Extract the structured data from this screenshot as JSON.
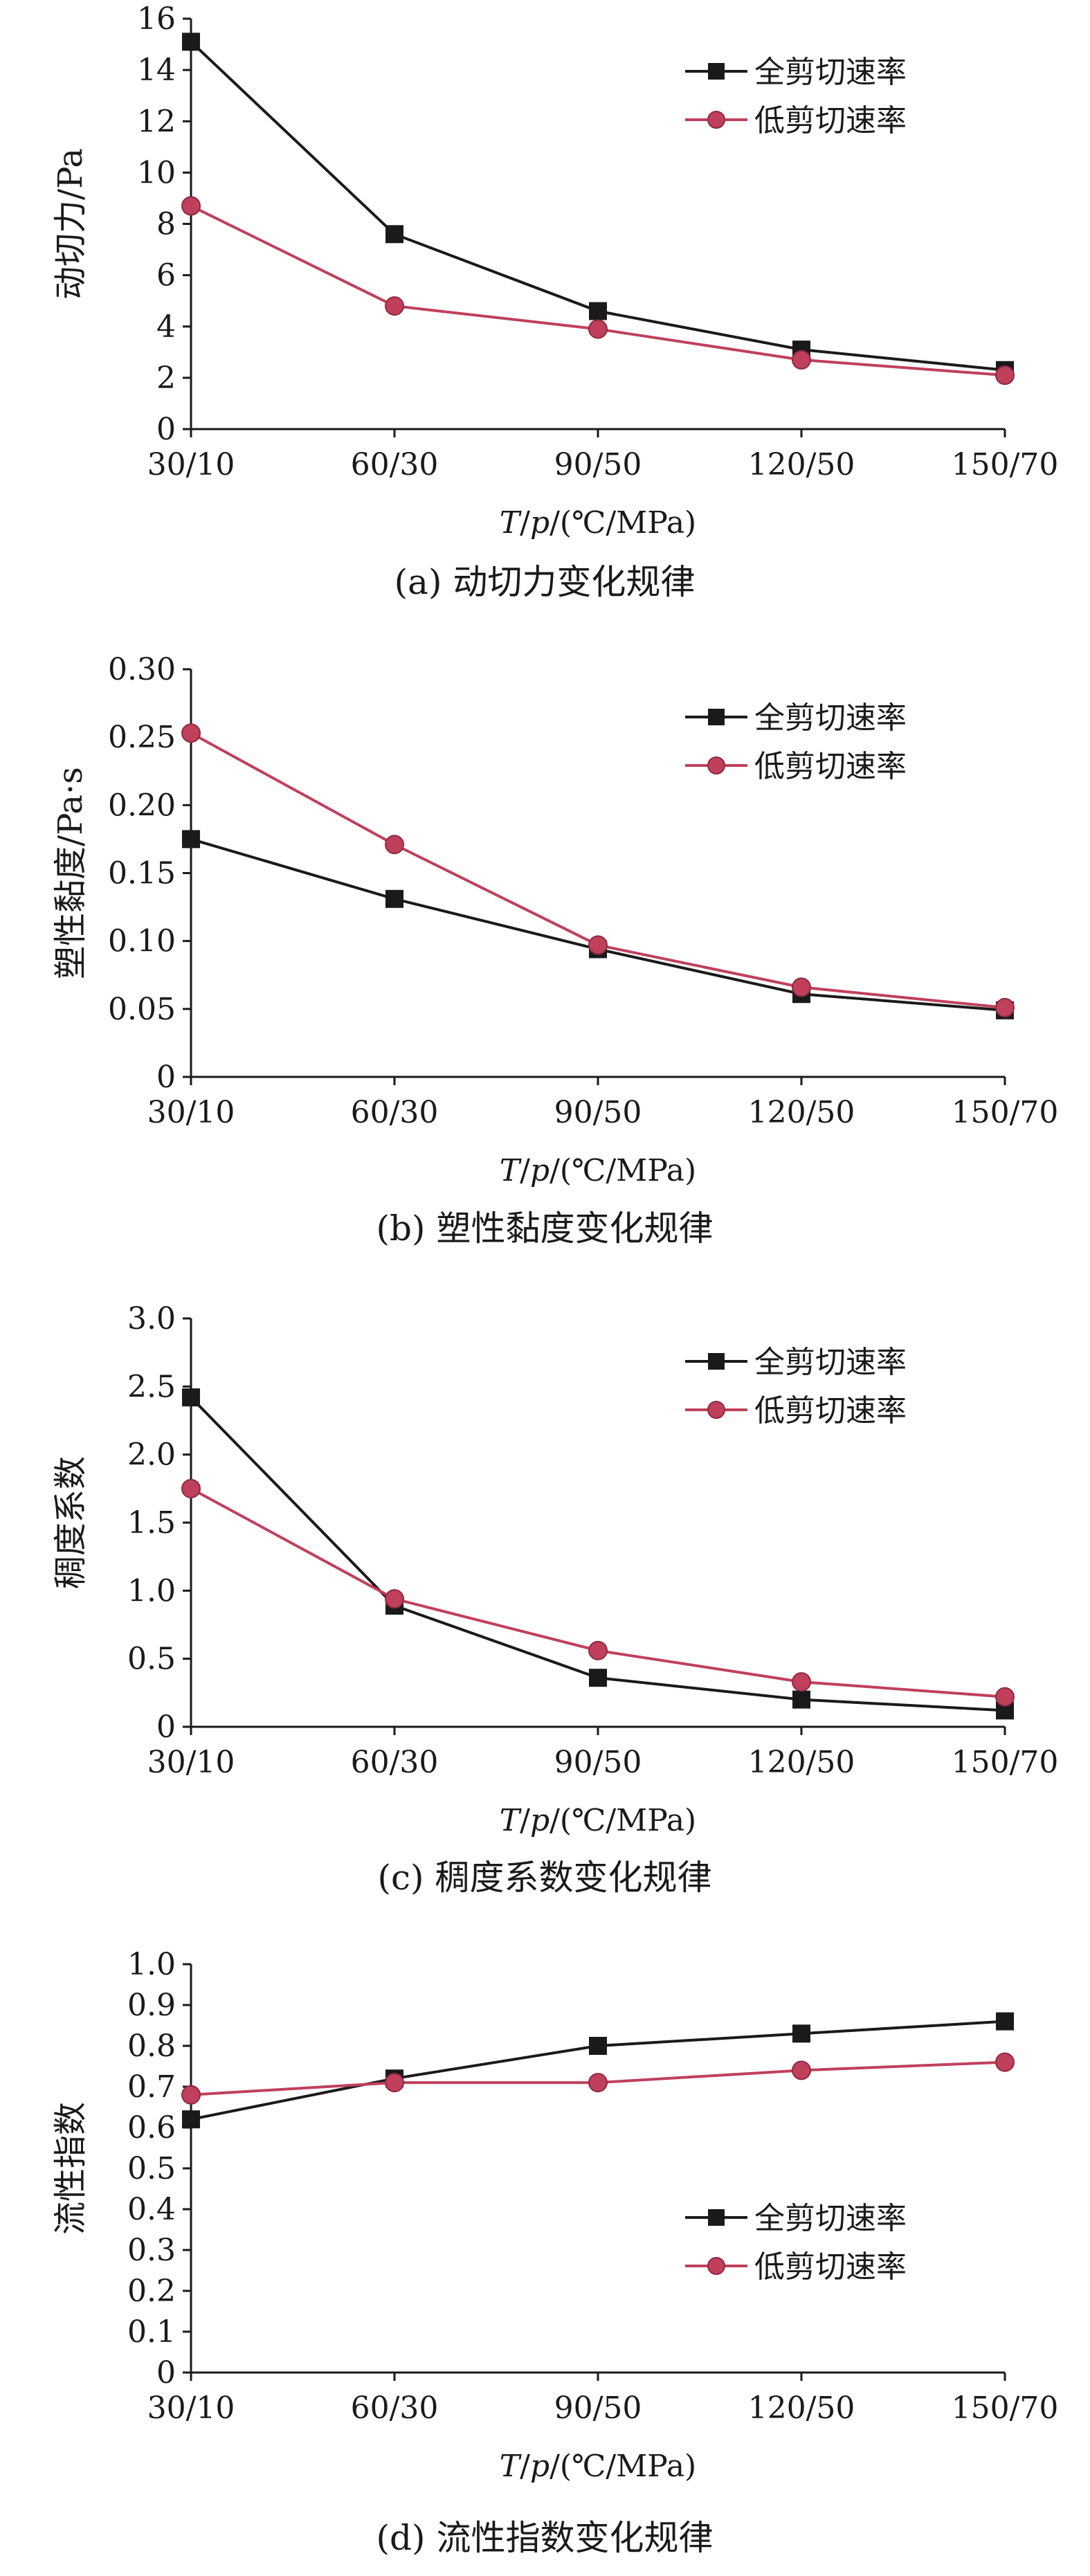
{
  "colors": {
    "full": "#1a1a1a",
    "low": "#c0405c"
  },
  "chart_data": [
    {
      "type": "line",
      "caption": "(a) 动切力变化规律",
      "ylabel": "动切力/Pa",
      "xlabel": "T/p/(℃/MPa)",
      "categories": [
        "30/10",
        "60/30",
        "90/50",
        "120/50",
        "150/70"
      ],
      "ylim": [
        0,
        16
      ],
      "yticks": [
        "0",
        "2",
        "4",
        "6",
        "8",
        "10",
        "12",
        "14",
        "16"
      ],
      "legend_position": "top-right",
      "series": [
        {
          "name": "全剪切速率",
          "values": [
            15.1,
            7.6,
            4.6,
            3.1,
            2.3
          ]
        },
        {
          "name": "低剪切速率",
          "values": [
            8.7,
            4.8,
            3.9,
            2.7,
            2.1
          ]
        }
      ]
    },
    {
      "type": "line",
      "caption": "(b) 塑性黏度变化规律",
      "ylabel": "塑性黏度/Pa·s",
      "xlabel": "T/p/(℃/MPa)",
      "categories": [
        "30/10",
        "60/30",
        "90/50",
        "120/50",
        "150/70"
      ],
      "ylim": [
        0,
        0.3
      ],
      "yticks": [
        "0",
        "0.05",
        "0.10",
        "0.15",
        "0.20",
        "0.25",
        "0.30"
      ],
      "legend_position": "top-right",
      "series": [
        {
          "name": "全剪切速率",
          "values": [
            0.175,
            0.131,
            0.094,
            0.061,
            0.049
          ]
        },
        {
          "name": "低剪切速率",
          "values": [
            0.253,
            0.171,
            0.097,
            0.066,
            0.051
          ]
        }
      ]
    },
    {
      "type": "line",
      "caption": "(c) 稠度系数变化规律",
      "ylabel": "稠度系数",
      "xlabel": "T/p/(℃/MPa)",
      "categories": [
        "30/10",
        "60/30",
        "90/50",
        "120/50",
        "150/70"
      ],
      "ylim": [
        0,
        3
      ],
      "yticks": [
        "0",
        "0.5",
        "1.0",
        "1.5",
        "2.0",
        "2.5",
        "3.0"
      ],
      "legend_position": "top-right",
      "series": [
        {
          "name": "全剪切速率",
          "values": [
            2.42,
            0.89,
            0.36,
            0.2,
            0.12
          ]
        },
        {
          "name": "低剪切速率",
          "values": [
            1.75,
            0.94,
            0.56,
            0.33,
            0.22
          ]
        }
      ]
    },
    {
      "type": "line",
      "caption": "(d) 流性指数变化规律",
      "ylabel": "流性指数",
      "xlabel": "T/p/(℃/MPa)",
      "categories": [
        "30/10",
        "60/30",
        "90/50",
        "120/50",
        "150/70"
      ],
      "ylim": [
        0,
        1
      ],
      "yticks": [
        "0",
        "0.1",
        "0.2",
        "0.3",
        "0.4",
        "0.5",
        "0.6",
        "0.7",
        "0.8",
        "0.9",
        "1.0"
      ],
      "legend_position": "lower-right",
      "series": [
        {
          "name": "全剪切速率",
          "values": [
            0.62,
            0.72,
            0.8,
            0.83,
            0.86
          ]
        },
        {
          "name": "低剪切速率",
          "values": [
            0.68,
            0.71,
            0.71,
            0.74,
            0.76
          ]
        }
      ]
    }
  ]
}
